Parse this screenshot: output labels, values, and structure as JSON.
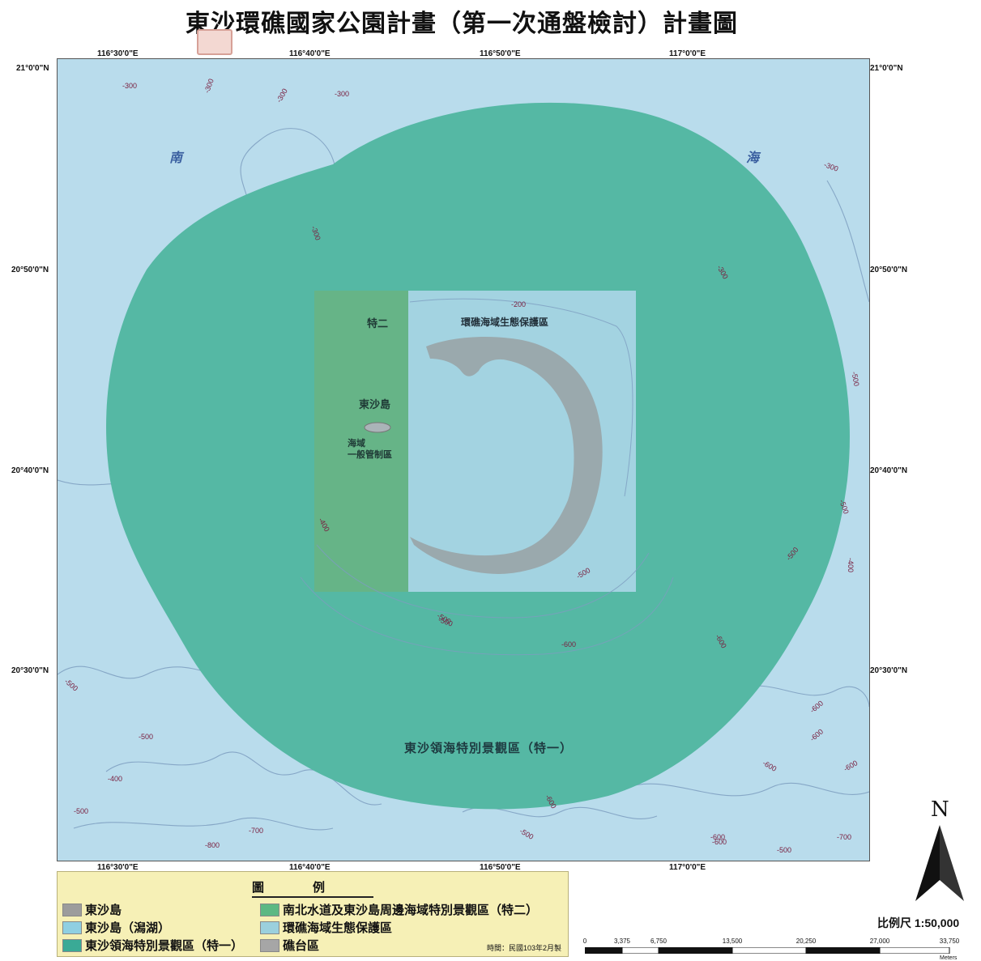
{
  "title": "東沙環礁國家公園計畫（第一次通盤檢討）計畫圖",
  "graticule": {
    "top": [
      "116°30'0\"E",
      "116°40'0\"E",
      "116°50'0\"E",
      "117°0'0\"E"
    ],
    "bottom": [
      "116°30'0\"E",
      "116°40'0\"E",
      "116°50'0\"E",
      "117°0'0\"E"
    ],
    "left": [
      "21°0'0\"N",
      "20°50'0\"N",
      "20°40'0\"N",
      "20°30'0\"N"
    ],
    "right": [
      "21°0'0\"N",
      "20°50'0\"N",
      "20°40'0\"N",
      "20°30'0\"N"
    ]
  },
  "map": {
    "sea_labels": [
      "南",
      "海"
    ],
    "zone_labels": {
      "special2": "特二",
      "ecology": "環礁海域生態保護區",
      "island": "東沙島",
      "general": "海域\n一般管制區",
      "special1": "東沙領海特別景觀區（特一）"
    },
    "depth_labels": [
      "-300",
      "-300",
      "-300",
      "-300",
      "-300",
      "-300",
      "-300",
      "-200",
      "-400",
      "-500",
      "-500",
      "-500",
      "-400",
      "-500",
      "-600",
      "-600",
      "-600",
      "-500",
      "-600",
      "-600",
      "-600",
      "-500",
      "-500",
      "-600",
      "-500",
      "-700",
      "-800",
      "-700",
      "-600",
      "-500",
      "-600",
      "-400",
      "-500",
      "-500"
    ]
  },
  "legend": {
    "title": "圖例",
    "items": [
      {
        "label": "東沙島",
        "color": "#9c9c9c"
      },
      {
        "label": "東沙島（潟湖）",
        "color": "#8fcfe2"
      },
      {
        "label": "東沙領海特別景觀區（特一）",
        "color": "#3aaa96"
      },
      {
        "label": "南北水道及東沙島周邊海域特別景觀區（特二）",
        "color": "#5cb883"
      },
      {
        "label": "環礁海域生態保護區",
        "color": "#9bd0dd"
      },
      {
        "label": "礁台區",
        "color": "#a6a6a6"
      }
    ],
    "date": "時間：民國103年2月製"
  },
  "north_label": "N",
  "scale": {
    "label": "比例尺 1:50,000",
    "ticks": [
      "0",
      "3,375",
      "6,750",
      "13,500",
      "20,250",
      "27,000",
      "33,750"
    ],
    "unit": "Meters"
  },
  "colors": {
    "sea": "#b9dcec",
    "special1": "#55b8a4",
    "special2": "#66b487",
    "ecology": "#a3d3e1",
    "reef": "#9aa9ad",
    "contour": "#7d9dc0"
  }
}
